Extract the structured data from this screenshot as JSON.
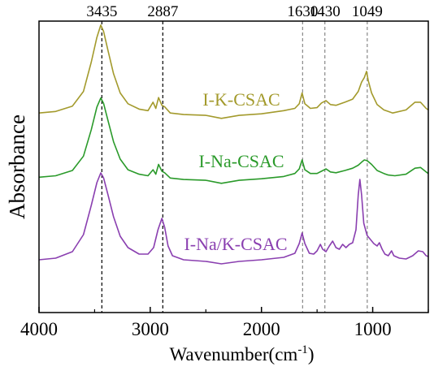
{
  "chart_data": {
    "type": "line",
    "title": "",
    "xlabel": "Wavenumber(cm",
    "xlabel_superscript": "-1",
    "xlabel_suffix": ")",
    "ylabel": "Absorbance",
    "xlim": [
      4000,
      500
    ],
    "x_reversed": true,
    "x_ticks": [
      4000,
      3000,
      2000,
      1000
    ],
    "x_tick_labels": [
      "4000",
      "3000",
      "2000",
      "1000"
    ],
    "y_ticks_shown": false,
    "grid": false,
    "legend": "none",
    "annotation_lines": [
      {
        "x": 3435,
        "label": "3435",
        "color": "#000000"
      },
      {
        "x": 2887,
        "label": "2887",
        "color": "#000000"
      },
      {
        "x": 1630,
        "label": "1630",
        "color": "#888888"
      },
      {
        "x": 1430,
        "label": "1430",
        "color": "#888888"
      },
      {
        "x": 1049,
        "label": "1049",
        "color": "#888888"
      }
    ],
    "series": [
      {
        "name": "I-K-CSAC",
        "color": "#a39a2c",
        "points": [
          [
            4000,
            0.04
          ],
          [
            3850,
            0.06
          ],
          [
            3700,
            0.13
          ],
          [
            3600,
            0.32
          ],
          [
            3530,
            0.7
          ],
          [
            3480,
            1.02
          ],
          [
            3445,
            1.18
          ],
          [
            3420,
            1.1
          ],
          [
            3380,
            0.85
          ],
          [
            3330,
            0.55
          ],
          [
            3270,
            0.3
          ],
          [
            3200,
            0.16
          ],
          [
            3100,
            0.09
          ],
          [
            3020,
            0.07
          ],
          [
            2975,
            0.18
          ],
          [
            2950,
            0.1
          ],
          [
            2925,
            0.24
          ],
          [
            2895,
            0.14
          ],
          [
            2870,
            0.12
          ],
          [
            2820,
            0.04
          ],
          [
            2700,
            0.02
          ],
          [
            2500,
            0.01
          ],
          [
            2360,
            -0.03
          ],
          [
            2200,
            0.01
          ],
          [
            2000,
            0.03
          ],
          [
            1800,
            0.07
          ],
          [
            1700,
            0.1
          ],
          [
            1660,
            0.16
          ],
          [
            1635,
            0.3
          ],
          [
            1610,
            0.16
          ],
          [
            1560,
            0.1
          ],
          [
            1500,
            0.11
          ],
          [
            1460,
            0.17
          ],
          [
            1420,
            0.2
          ],
          [
            1380,
            0.15
          ],
          [
            1330,
            0.14
          ],
          [
            1250,
            0.18
          ],
          [
            1180,
            0.22
          ],
          [
            1130,
            0.32
          ],
          [
            1100,
            0.44
          ],
          [
            1075,
            0.5
          ],
          [
            1055,
            0.58
          ],
          [
            1040,
            0.46
          ],
          [
            1010,
            0.3
          ],
          [
            960,
            0.15
          ],
          [
            900,
            0.08
          ],
          [
            860,
            0.06
          ],
          [
            820,
            0.04
          ],
          [
            700,
            0.08
          ],
          [
            620,
            0.18
          ],
          [
            570,
            0.18
          ],
          [
            520,
            0.1
          ],
          [
            500,
            0.08
          ]
        ]
      },
      {
        "name": "I-Na-CSAC",
        "color": "#2a9a2a",
        "points": [
          [
            4000,
            0.05
          ],
          [
            3850,
            0.07
          ],
          [
            3700,
            0.14
          ],
          [
            3600,
            0.33
          ],
          [
            3530,
            0.68
          ],
          [
            3480,
            0.98
          ],
          [
            3445,
            1.1
          ],
          [
            3420,
            1.03
          ],
          [
            3380,
            0.8
          ],
          [
            3330,
            0.52
          ],
          [
            3270,
            0.29
          ],
          [
            3200,
            0.15
          ],
          [
            3100,
            0.09
          ],
          [
            3020,
            0.07
          ],
          [
            2975,
            0.15
          ],
          [
            2950,
            0.09
          ],
          [
            2925,
            0.22
          ],
          [
            2895,
            0.13
          ],
          [
            2870,
            0.11
          ],
          [
            2820,
            0.04
          ],
          [
            2700,
            0.02
          ],
          [
            2500,
            0.01
          ],
          [
            2360,
            -0.03
          ],
          [
            2200,
            0.01
          ],
          [
            2000,
            0.03
          ],
          [
            1800,
            0.06
          ],
          [
            1700,
            0.1
          ],
          [
            1660,
            0.16
          ],
          [
            1635,
            0.28
          ],
          [
            1610,
            0.15
          ],
          [
            1560,
            0.1
          ],
          [
            1500,
            0.1
          ],
          [
            1460,
            0.13
          ],
          [
            1420,
            0.16
          ],
          [
            1380,
            0.12
          ],
          [
            1330,
            0.11
          ],
          [
            1250,
            0.14
          ],
          [
            1180,
            0.17
          ],
          [
            1130,
            0.21
          ],
          [
            1100,
            0.25
          ],
          [
            1075,
            0.28
          ],
          [
            1050,
            0.27
          ],
          [
            1010,
            0.22
          ],
          [
            960,
            0.14
          ],
          [
            900,
            0.1
          ],
          [
            860,
            0.08
          ],
          [
            800,
            0.07
          ],
          [
            700,
            0.09
          ],
          [
            620,
            0.17
          ],
          [
            570,
            0.18
          ],
          [
            520,
            0.12
          ],
          [
            500,
            0.1
          ]
        ]
      },
      {
        "name": "I-Na/K-CSAC",
        "color": "#8a3fb0",
        "points": [
          [
            4000,
            0.05
          ],
          [
            3850,
            0.07
          ],
          [
            3700,
            0.15
          ],
          [
            3600,
            0.36
          ],
          [
            3530,
            0.72
          ],
          [
            3480,
            1.0
          ],
          [
            3445,
            1.12
          ],
          [
            3420,
            1.06
          ],
          [
            3380,
            0.85
          ],
          [
            3330,
            0.58
          ],
          [
            3270,
            0.34
          ],
          [
            3200,
            0.2
          ],
          [
            3100,
            0.12
          ],
          [
            3020,
            0.12
          ],
          [
            2970,
            0.2
          ],
          [
            2930,
            0.42
          ],
          [
            2895,
            0.56
          ],
          [
            2870,
            0.45
          ],
          [
            2840,
            0.22
          ],
          [
            2800,
            0.1
          ],
          [
            2700,
            0.05
          ],
          [
            2500,
            0.03
          ],
          [
            2360,
            0.0
          ],
          [
            2200,
            0.03
          ],
          [
            2000,
            0.05
          ],
          [
            1800,
            0.08
          ],
          [
            1700,
            0.13
          ],
          [
            1660,
            0.25
          ],
          [
            1635,
            0.38
          ],
          [
            1610,
            0.25
          ],
          [
            1570,
            0.13
          ],
          [
            1530,
            0.12
          ],
          [
            1500,
            0.16
          ],
          [
            1470,
            0.24
          ],
          [
            1450,
            0.18
          ],
          [
            1420,
            0.15
          ],
          [
            1390,
            0.22
          ],
          [
            1360,
            0.28
          ],
          [
            1330,
            0.2
          ],
          [
            1300,
            0.18
          ],
          [
            1270,
            0.24
          ],
          [
            1240,
            0.2
          ],
          [
            1210,
            0.24
          ],
          [
            1180,
            0.26
          ],
          [
            1150,
            0.42
          ],
          [
            1130,
            0.85
          ],
          [
            1115,
            1.04
          ],
          [
            1100,
            0.85
          ],
          [
            1080,
            0.5
          ],
          [
            1050,
            0.35
          ],
          [
            1020,
            0.3
          ],
          [
            990,
            0.25
          ],
          [
            960,
            0.22
          ],
          [
            940,
            0.26
          ],
          [
            915,
            0.18
          ],
          [
            890,
            0.12
          ],
          [
            860,
            0.1
          ],
          [
            830,
            0.16
          ],
          [
            810,
            0.1
          ],
          [
            760,
            0.07
          ],
          [
            700,
            0.06
          ],
          [
            640,
            0.1
          ],
          [
            590,
            0.16
          ],
          [
            550,
            0.15
          ],
          [
            520,
            0.1
          ],
          [
            500,
            0.09
          ]
        ]
      }
    ]
  }
}
